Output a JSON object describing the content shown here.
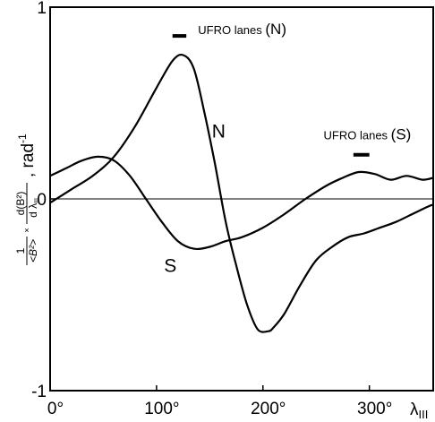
{
  "chart_data": {
    "type": "line",
    "xlabel_main": "λ",
    "xlabel_sub": "III",
    "ylabel": {
      "prefix_num": "1",
      "prefix_den": "<B²>",
      "times": "×",
      "frac_num": "d(B²)",
      "frac_den": "d λ",
      "frac_den_sub": "III",
      "unit": ", rad",
      "unit_exp": "-1"
    },
    "xlim": [
      0,
      360
    ],
    "ylim": [
      -1,
      1
    ],
    "x_ticks": [
      0,
      100,
      200,
      300
    ],
    "x_tick_labels": [
      "0°",
      "100°",
      "200°",
      "300°"
    ],
    "y_ticks": [
      -1,
      0,
      1
    ],
    "y_tick_labels": [
      "-1",
      "0",
      "1"
    ],
    "zero_line": true,
    "series": [
      {
        "name": "N",
        "x": [
          0,
          20,
          40,
          60,
          80,
          100,
          115,
          125,
          135,
          145,
          155,
          165,
          175,
          185,
          195,
          205,
          210,
          220,
          235,
          250,
          265,
          280,
          295,
          310,
          325,
          340,
          355,
          360
        ],
        "y": [
          -0.02,
          0.05,
          0.12,
          0.22,
          0.38,
          0.58,
          0.72,
          0.75,
          0.68,
          0.45,
          0.18,
          -0.12,
          -0.35,
          -0.55,
          -0.68,
          -0.69,
          -0.67,
          -0.6,
          -0.45,
          -0.32,
          -0.25,
          -0.2,
          -0.18,
          -0.15,
          -0.12,
          -0.08,
          -0.04,
          -0.03
        ]
      },
      {
        "name": "S",
        "x": [
          0,
          15,
          30,
          45,
          60,
          75,
          90,
          105,
          120,
          135,
          150,
          165,
          180,
          200,
          220,
          240,
          260,
          275,
          290,
          305,
          320,
          335,
          350,
          360
        ],
        "y": [
          0.12,
          0.16,
          0.2,
          0.22,
          0.2,
          0.12,
          0.0,
          -0.12,
          -0.22,
          -0.26,
          -0.25,
          -0.22,
          -0.2,
          -0.15,
          -0.08,
          0.0,
          0.07,
          0.11,
          0.14,
          0.13,
          0.1,
          0.12,
          0.1,
          0.11
        ]
      }
    ],
    "annotations": [
      {
        "text": "N",
        "series": "N",
        "x": 152,
        "y": 0.32
      },
      {
        "text": "S",
        "series": "S",
        "x": 107,
        "y": -0.38
      },
      {
        "text": "UFRO lanes",
        "paren": "(N)",
        "bar_x": [
          115,
          128
        ],
        "bar_y": 0.85,
        "text_x": 139,
        "text_y": 0.86
      },
      {
        "text": "UFRO lanes",
        "paren": "(S)",
        "bar_x": [
          285,
          300
        ],
        "bar_y": 0.23,
        "text_x": 257,
        "text_y": 0.31
      }
    ]
  }
}
